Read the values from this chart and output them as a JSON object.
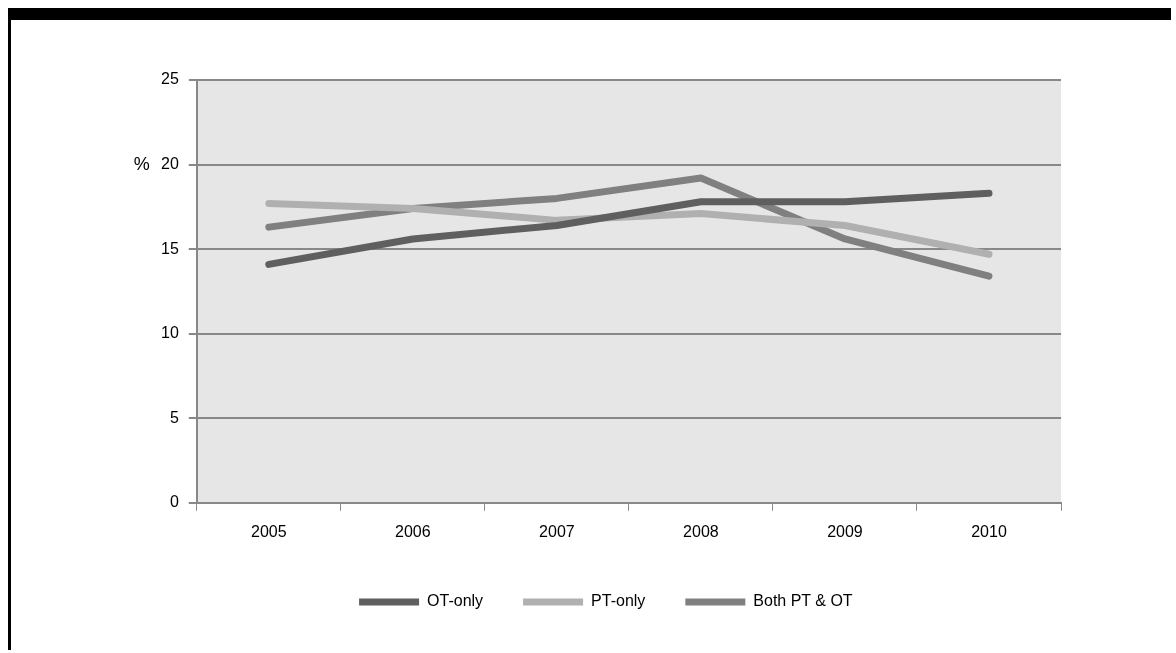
{
  "chart_data": {
    "type": "line",
    "ylabel": "%",
    "categories": [
      "2005",
      "2006",
      "2007",
      "2008",
      "2009",
      "2010"
    ],
    "series": [
      {
        "name": "OT-only",
        "color": "#5f5f5f",
        "values": [
          14.1,
          15.6,
          16.4,
          17.8,
          17.8,
          18.3
        ]
      },
      {
        "name": "PT-only",
        "color": "#b0b0b0",
        "values": [
          17.7,
          17.4,
          16.7,
          17.1,
          16.4,
          14.7
        ]
      },
      {
        "name": "Both PT & OT",
        "color": "#808080",
        "values": [
          16.3,
          17.4,
          18.0,
          19.2,
          15.6,
          13.4
        ]
      }
    ],
    "ylim": [
      0,
      25
    ],
    "yticks": [
      0,
      5,
      10,
      15,
      20,
      25
    ],
    "grid": "y",
    "legend": "bottom",
    "marker": "none",
    "line_style": "solid"
  }
}
